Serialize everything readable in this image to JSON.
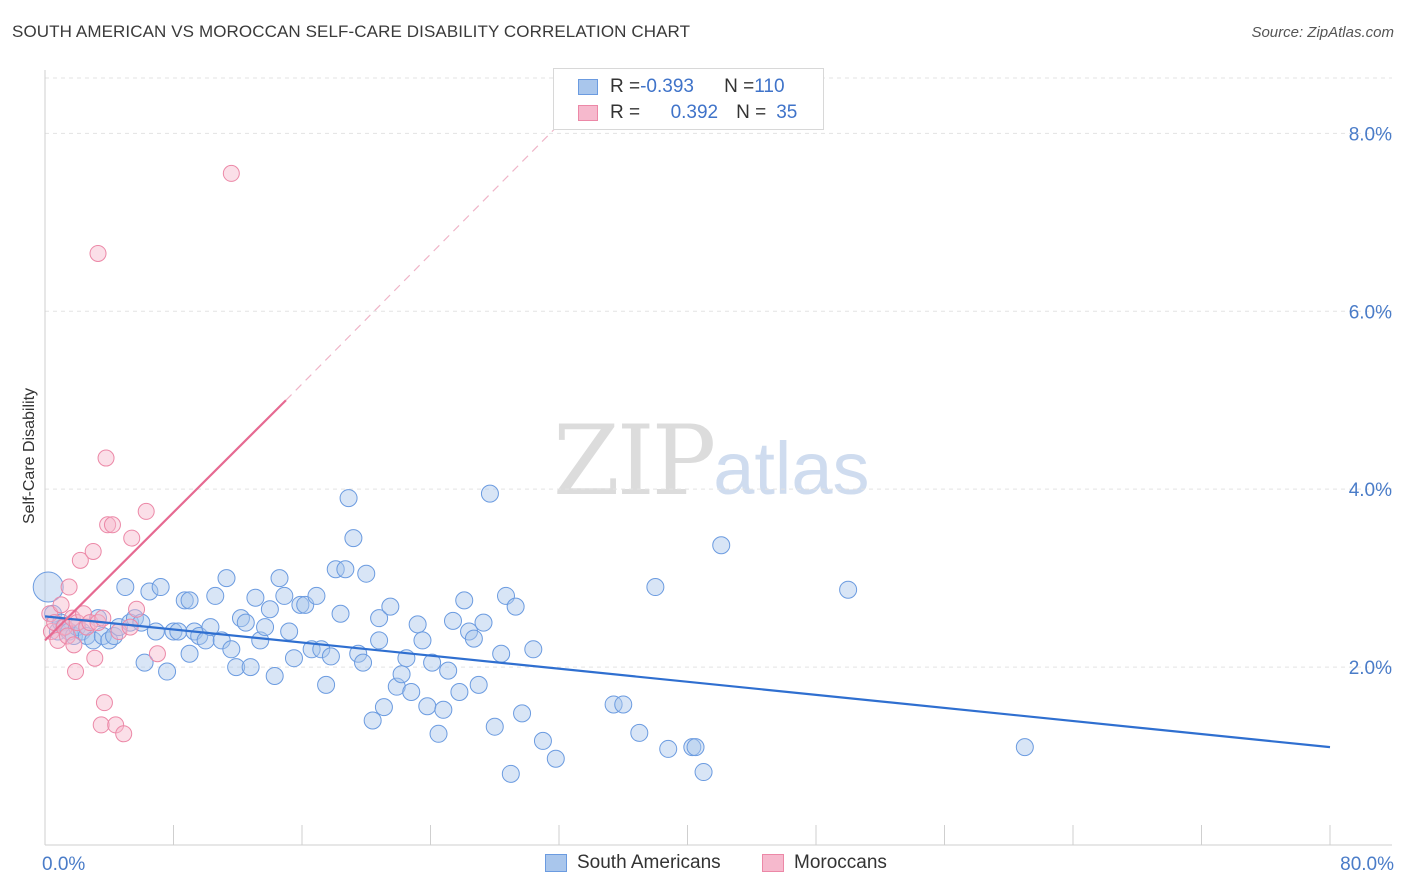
{
  "header": {
    "title": "SOUTH AMERICAN VS MOROCCAN SELF-CARE DISABILITY CORRELATION CHART",
    "source": "Source: ZipAtlas.com"
  },
  "watermark": {
    "left": "ZIP",
    "right": "atlas"
  },
  "legend": {
    "rows": [
      {
        "r_label": "R = ",
        "r_value": "-0.393",
        "n_label": "N = ",
        "n_value": "110"
      },
      {
        "r_label": "R = ",
        "r_value": "0.392",
        "n_label": "N = ",
        "n_value": "35"
      }
    ]
  },
  "bottom_legend": {
    "series1": "South Americans",
    "series2": "Moroccans"
  },
  "colors": {
    "blue_fill": "#a9c6ec",
    "blue_stroke": "#6b9be0",
    "blue_line": "#2f6fd0",
    "pink_fill": "#f6b9cd",
    "pink_stroke": "#ec88a7",
    "pink_line": "#e66a92",
    "tick_text": "#4a7cc8",
    "grid": "#e3e3e3"
  },
  "chart_data": {
    "type": "scatter",
    "title": "SOUTH AMERICAN VS MOROCCAN SELF-CARE DISABILITY CORRELATION CHART",
    "xlabel": "",
    "ylabel": "Self-Care Disability",
    "xlim": [
      0,
      80
    ],
    "ylim": [
      0,
      8.6
    ],
    "x_ticks": [
      "0.0%",
      "80.0%"
    ],
    "y_ticks": [
      "2.0%",
      "4.0%",
      "6.0%",
      "8.0%"
    ],
    "y_tick_values": [
      2,
      4,
      6,
      8
    ],
    "grid": "horizontal dashed",
    "legend_position": "top-center",
    "series": [
      {
        "name": "South Americans",
        "color": "blue",
        "r": -0.393,
        "n": 110,
        "trend": {
          "x": [
            0,
            80
          ],
          "y": [
            2.57,
            1.1
          ]
        },
        "points": [
          [
            0.2,
            2.9
          ],
          [
            0.5,
            2.6
          ],
          [
            0.8,
            2.4
          ],
          [
            1.0,
            2.5
          ],
          [
            1.2,
            2.45
          ],
          [
            1.5,
            2.4
          ],
          [
            1.8,
            2.35
          ],
          [
            2.0,
            2.45
          ],
          [
            2.3,
            2.4
          ],
          [
            2.6,
            2.35
          ],
          [
            3.0,
            2.3
          ],
          [
            3.3,
            2.55
          ],
          [
            3.6,
            2.35
          ],
          [
            4.0,
            2.3
          ],
          [
            4.3,
            2.35
          ],
          [
            4.6,
            2.45
          ],
          [
            5.0,
            2.9
          ],
          [
            5.3,
            2.5
          ],
          [
            5.6,
            2.55
          ],
          [
            6.0,
            2.5
          ],
          [
            6.2,
            2.05
          ],
          [
            6.5,
            2.85
          ],
          [
            6.9,
            2.4
          ],
          [
            7.2,
            2.9
          ],
          [
            7.6,
            1.95
          ],
          [
            8.0,
            2.4
          ],
          [
            8.3,
            2.4
          ],
          [
            8.7,
            2.75
          ],
          [
            9.0,
            2.15
          ],
          [
            9.3,
            2.4
          ],
          [
            9.6,
            2.35
          ],
          [
            10.0,
            2.3
          ],
          [
            10.3,
            2.45
          ],
          [
            10.6,
            2.8
          ],
          [
            11.0,
            2.3
          ],
          [
            11.3,
            3.0
          ],
          [
            11.6,
            2.2
          ],
          [
            11.9,
            2.0
          ],
          [
            12.2,
            2.55
          ],
          [
            12.5,
            2.5
          ],
          [
            12.8,
            2.0
          ],
          [
            13.1,
            2.78
          ],
          [
            13.4,
            2.3
          ],
          [
            13.7,
            2.45
          ],
          [
            14.0,
            2.65
          ],
          [
            14.3,
            1.9
          ],
          [
            14.6,
            3.0
          ],
          [
            14.9,
            2.8
          ],
          [
            15.2,
            2.4
          ],
          [
            15.5,
            2.1
          ],
          [
            15.9,
            2.7
          ],
          [
            16.2,
            2.7
          ],
          [
            16.6,
            2.2
          ],
          [
            16.9,
            2.8
          ],
          [
            17.2,
            2.2
          ],
          [
            17.5,
            1.8
          ],
          [
            17.8,
            2.12
          ],
          [
            18.1,
            3.1
          ],
          [
            18.4,
            2.6
          ],
          [
            18.7,
            3.1
          ],
          [
            18.9,
            3.9
          ],
          [
            19.2,
            3.45
          ],
          [
            19.5,
            2.15
          ],
          [
            19.8,
            2.05
          ],
          [
            20.0,
            3.05
          ],
          [
            20.4,
            1.4
          ],
          [
            20.8,
            2.55
          ],
          [
            21.1,
            1.55
          ],
          [
            21.5,
            2.68
          ],
          [
            21.9,
            1.78
          ],
          [
            22.2,
            1.92
          ],
          [
            22.5,
            2.1
          ],
          [
            22.8,
            1.72
          ],
          [
            23.2,
            2.48
          ],
          [
            23.5,
            2.3
          ],
          [
            23.8,
            1.56
          ],
          [
            24.1,
            2.05
          ],
          [
            24.5,
            1.25
          ],
          [
            24.8,
            1.52
          ],
          [
            25.1,
            1.96
          ],
          [
            25.4,
            2.52
          ],
          [
            25.8,
            1.72
          ],
          [
            26.1,
            2.75
          ],
          [
            26.4,
            2.4
          ],
          [
            26.7,
            2.32
          ],
          [
            27.0,
            1.8
          ],
          [
            27.3,
            2.5
          ],
          [
            27.7,
            3.95
          ],
          [
            28.0,
            1.33
          ],
          [
            28.4,
            2.15
          ],
          [
            28.7,
            2.8
          ],
          [
            29.0,
            0.8
          ],
          [
            29.3,
            2.68
          ],
          [
            29.7,
            1.48
          ],
          [
            30.4,
            2.2
          ],
          [
            31.0,
            1.17
          ],
          [
            31.8,
            0.97
          ],
          [
            35.4,
            1.58
          ],
          [
            36.0,
            1.58
          ],
          [
            37.0,
            1.26
          ],
          [
            38.0,
            2.9
          ],
          [
            38.8,
            1.08
          ],
          [
            40.3,
            1.1
          ],
          [
            40.5,
            1.1
          ],
          [
            41.0,
            0.82
          ],
          [
            42.1,
            3.37
          ],
          [
            50.0,
            2.87
          ],
          [
            61.0,
            1.1
          ],
          [
            20.8,
            2.3
          ],
          [
            9.0,
            2.75
          ]
        ]
      },
      {
        "name": "Moroccans",
        "color": "pink",
        "r": 0.392,
        "n": 35,
        "trend": {
          "x": [
            0,
            15
          ],
          "y": [
            2.3,
            5.0
          ]
        },
        "trend_ext": {
          "x": [
            15,
            32
          ],
          "y": [
            5.0,
            8.1
          ]
        },
        "points": [
          [
            0.3,
            2.6
          ],
          [
            0.4,
            2.4
          ],
          [
            0.6,
            2.5
          ],
          [
            0.8,
            2.3
          ],
          [
            1.0,
            2.7
          ],
          [
            1.2,
            2.45
          ],
          [
            1.4,
            2.35
          ],
          [
            1.5,
            2.9
          ],
          [
            1.7,
            2.55
          ],
          [
            1.8,
            2.25
          ],
          [
            1.9,
            1.95
          ],
          [
            2.0,
            2.5
          ],
          [
            2.2,
            3.2
          ],
          [
            2.4,
            2.6
          ],
          [
            2.6,
            2.45
          ],
          [
            2.8,
            2.5
          ],
          [
            3.0,
            3.3
          ],
          [
            3.1,
            2.1
          ],
          [
            3.3,
            2.5
          ],
          [
            3.5,
            1.35
          ],
          [
            3.6,
            2.55
          ],
          [
            3.7,
            1.6
          ],
          [
            3.8,
            4.35
          ],
          [
            3.9,
            3.6
          ],
          [
            4.2,
            3.6
          ],
          [
            4.4,
            1.35
          ],
          [
            4.6,
            2.4
          ],
          [
            4.9,
            1.25
          ],
          [
            5.3,
            2.45
          ],
          [
            5.4,
            3.45
          ],
          [
            5.7,
            2.65
          ],
          [
            6.3,
            3.75
          ],
          [
            7.0,
            2.15
          ],
          [
            11.6,
            7.55
          ],
          [
            3.3,
            6.65
          ]
        ]
      }
    ]
  }
}
